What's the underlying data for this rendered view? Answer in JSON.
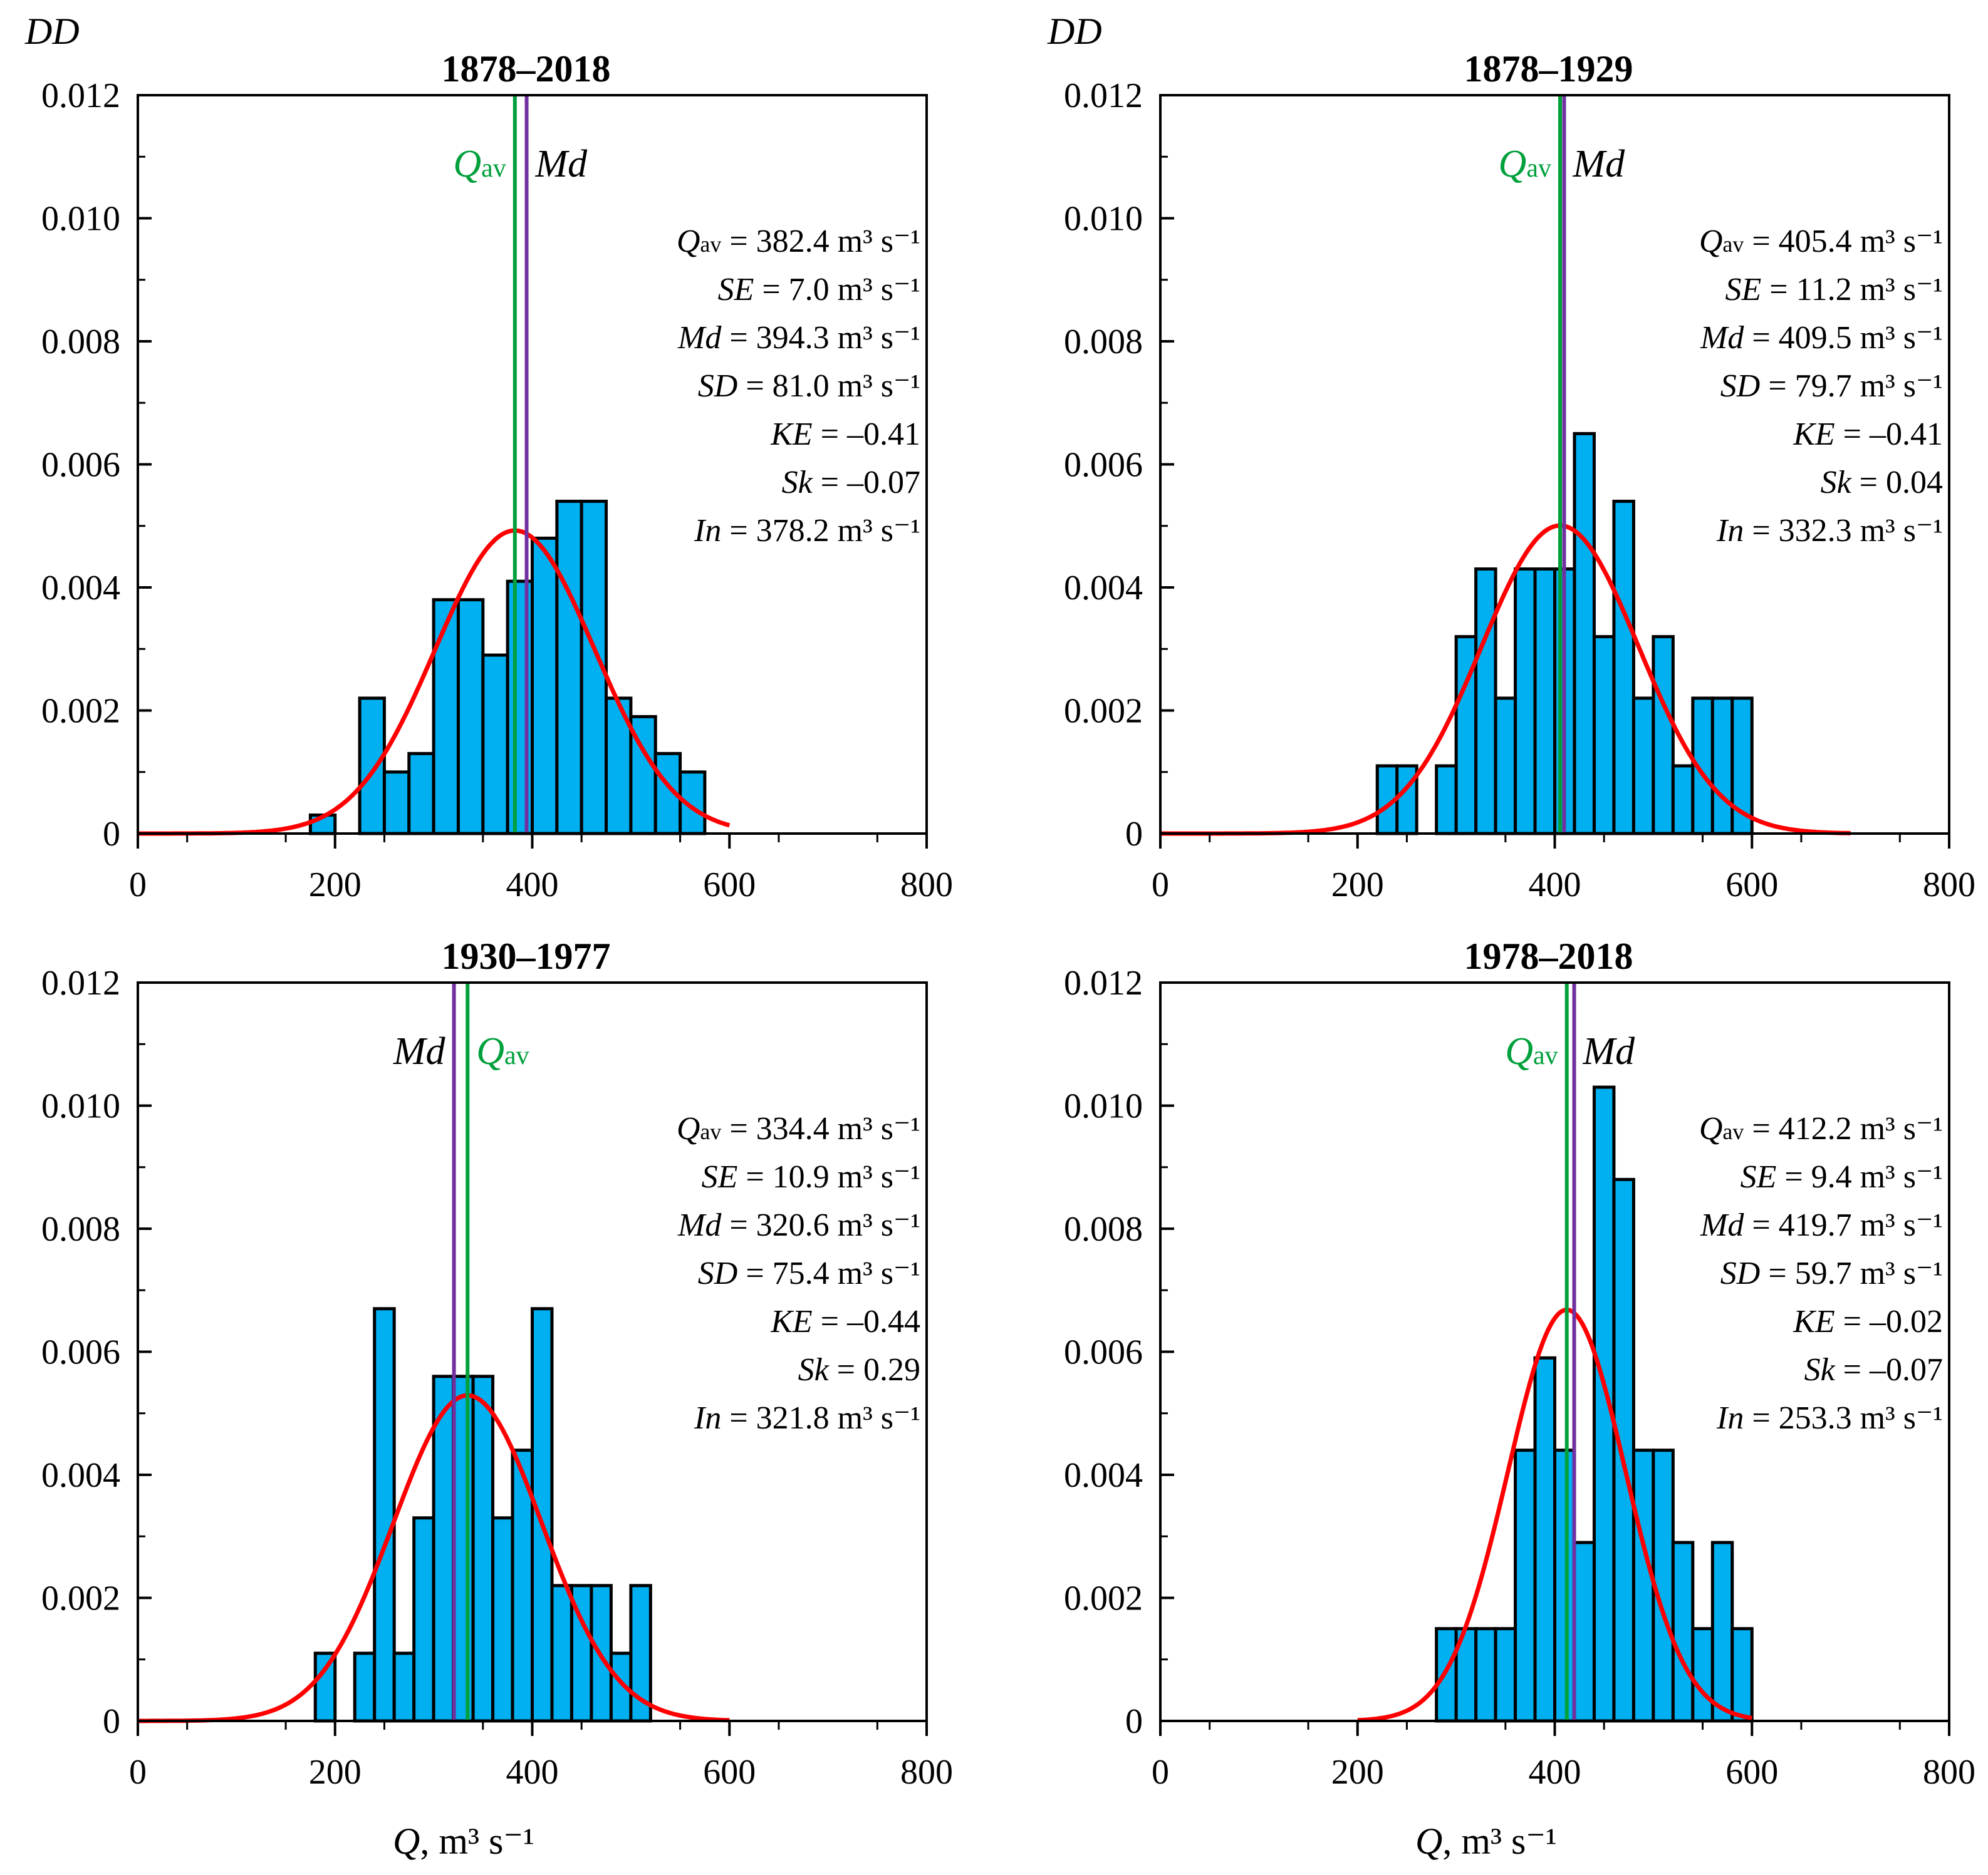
{
  "figure": {
    "y_axis_label": "DD",
    "x_axis_label": "Q, m³ s⁻¹",
    "x_axis_label_var": "Q",
    "x_axis_label_unit": ", m³ s⁻¹"
  },
  "colors": {
    "bars": "#00B0F0",
    "bar_outline": "#000000",
    "normal_curve": "#FF0000",
    "qav_line": "#00A03C",
    "md_line": "#7030A0"
  },
  "chart_data": [
    {
      "type": "bar",
      "title": "1878–2018",
      "xlabel": "Q, m³ s⁻¹",
      "ylabel": "DD",
      "xlim": [
        0,
        800
      ],
      "ylim": [
        0,
        0.012
      ],
      "x_ticks": [
        "0",
        "200",
        "400",
        "600",
        "800"
      ],
      "y_ticks": [
        "0",
        "0.002",
        "0.004",
        "0.006",
        "0.008",
        "0.010",
        "0.012"
      ],
      "bin_width": 25,
      "bins": [
        [
          175,
          0.0003
        ],
        [
          225,
          0.0022
        ],
        [
          250,
          0.001
        ],
        [
          275,
          0.0013
        ],
        [
          300,
          0.0038
        ],
        [
          325,
          0.0038
        ],
        [
          350,
          0.0029
        ],
        [
          375,
          0.0041
        ],
        [
          400,
          0.0048
        ],
        [
          425,
          0.0054
        ],
        [
          450,
          0.0054
        ],
        [
          475,
          0.0022
        ],
        [
          500,
          0.0019
        ],
        [
          525,
          0.0013
        ],
        [
          550,
          0.001
        ]
      ],
      "normal_curve": {
        "mean": 382.4,
        "sd": 81.0,
        "x_range": [
          0,
          600
        ]
      },
      "qav": 382.4,
      "md": 394.3,
      "marker_order": "qav-left",
      "marker_labels": {
        "qav": "Qav",
        "md": "Md"
      },
      "stats": [
        {
          "label": "Qav",
          "value": "= 382.4 m³ s⁻¹"
        },
        {
          "label": "SE",
          "value": "= 7.0 m³ s⁻¹"
        },
        {
          "label": "Md",
          "value": "= 394.3 m³ s⁻¹"
        },
        {
          "label": "SD",
          "value": "= 81.0 m³ s⁻¹"
        },
        {
          "label": "KE",
          "value": "= –0.41"
        },
        {
          "label": "Sk",
          "value": "= –0.07"
        },
        {
          "label": "In",
          "value": "= 378.2 m³ s⁻¹"
        }
      ]
    },
    {
      "type": "bar",
      "title": "1878–1929",
      "xlabel": "Q, m³ s⁻¹",
      "ylabel": "DD",
      "xlim": [
        0,
        800
      ],
      "ylim": [
        0,
        0.012
      ],
      "x_ticks": [
        "0",
        "200",
        "400",
        "600",
        "800"
      ],
      "y_ticks": [
        "0",
        "0.002",
        "0.004",
        "0.006",
        "0.008",
        "0.010",
        "0.012"
      ],
      "bin_width": 20,
      "bins": [
        [
          220,
          0.0011
        ],
        [
          240,
          0.0011
        ],
        [
          280,
          0.0011
        ],
        [
          300,
          0.0032
        ],
        [
          320,
          0.0043
        ],
        [
          340,
          0.0022
        ],
        [
          360,
          0.0043
        ],
        [
          380,
          0.0043
        ],
        [
          400,
          0.0043
        ],
        [
          420,
          0.0065
        ],
        [
          440,
          0.0032
        ],
        [
          460,
          0.0054
        ],
        [
          480,
          0.0022
        ],
        [
          500,
          0.0032
        ],
        [
          520,
          0.0011
        ],
        [
          540,
          0.0022
        ],
        [
          560,
          0.0022
        ],
        [
          580,
          0.0022
        ]
      ],
      "normal_curve": {
        "mean": 405.4,
        "sd": 79.7,
        "x_range": [
          0,
          700
        ]
      },
      "qav": 405.4,
      "md": 409.5,
      "marker_order": "qav-left",
      "marker_labels": {
        "qav": "Qav",
        "md": "Md"
      },
      "stats": [
        {
          "label": "Qav",
          "value": "= 405.4 m³ s⁻¹"
        },
        {
          "label": "SE",
          "value": "= 11.2 m³ s⁻¹"
        },
        {
          "label": "Md",
          "value": "= 409.5 m³ s⁻¹"
        },
        {
          "label": "SD",
          "value": "= 79.7 m³ s⁻¹"
        },
        {
          "label": "KE",
          "value": "= –0.41"
        },
        {
          "label": "Sk",
          "value": "= 0.04"
        },
        {
          "label": "In",
          "value": "= 332.3 m³ s⁻¹"
        }
      ]
    },
    {
      "type": "bar",
      "title": "1930–1977",
      "xlabel": "Q, m³ s⁻¹",
      "ylabel": "DD",
      "xlim": [
        0,
        800
      ],
      "ylim": [
        0,
        0.012
      ],
      "x_ticks": [
        "0",
        "200",
        "400",
        "600",
        "800"
      ],
      "y_ticks": [
        "0",
        "0.002",
        "0.004",
        "0.006",
        "0.008",
        "0.010",
        "0.012"
      ],
      "bin_width": 20,
      "bins": [
        [
          180,
          0.0011
        ],
        [
          220,
          0.0011
        ],
        [
          240,
          0.0067
        ],
        [
          260,
          0.0011
        ],
        [
          280,
          0.0033
        ],
        [
          300,
          0.0056
        ],
        [
          320,
          0.0056
        ],
        [
          340,
          0.0056
        ],
        [
          360,
          0.0033
        ],
        [
          380,
          0.0044
        ],
        [
          400,
          0.0067
        ],
        [
          420,
          0.0022
        ],
        [
          440,
          0.0022
        ],
        [
          460,
          0.0022
        ],
        [
          480,
          0.0011
        ],
        [
          500,
          0.0022
        ]
      ],
      "normal_curve": {
        "mean": 334.4,
        "sd": 75.4,
        "x_range": [
          0,
          600
        ]
      },
      "qav": 334.4,
      "md": 320.6,
      "marker_order": "md-left",
      "marker_labels": {
        "qav": "Qav",
        "md": "Md"
      },
      "stats": [
        {
          "label": "Qav",
          "value": "= 334.4 m³ s⁻¹"
        },
        {
          "label": "SE",
          "value": "= 10.9 m³ s⁻¹"
        },
        {
          "label": "Md",
          "value": "= 320.6 m³ s⁻¹"
        },
        {
          "label": "SD",
          "value": "= 75.4 m³ s⁻¹"
        },
        {
          "label": "KE",
          "value": "= –0.44"
        },
        {
          "label": "Sk",
          "value": "= 0.29"
        },
        {
          "label": "In",
          "value": "= 321.8 m³ s⁻¹"
        }
      ]
    },
    {
      "type": "bar",
      "title": "1978–2018",
      "xlabel": "Q, m³ s⁻¹",
      "ylabel": "DD",
      "xlim": [
        0,
        800
      ],
      "ylim": [
        0,
        0.012
      ],
      "x_ticks": [
        "0",
        "200",
        "400",
        "600",
        "800"
      ],
      "y_ticks": [
        "0",
        "0.002",
        "0.004",
        "0.006",
        "0.008",
        "0.010",
        "0.012"
      ],
      "bin_width": 20,
      "bins": [
        [
          280,
          0.0015
        ],
        [
          300,
          0.0015
        ],
        [
          320,
          0.0015
        ],
        [
          340,
          0.0015
        ],
        [
          360,
          0.0044
        ],
        [
          380,
          0.0059
        ],
        [
          400,
          0.0044
        ],
        [
          420,
          0.0029
        ],
        [
          440,
          0.0103
        ],
        [
          460,
          0.0088
        ],
        [
          480,
          0.0044
        ],
        [
          500,
          0.0044
        ],
        [
          520,
          0.0029
        ],
        [
          540,
          0.0015
        ],
        [
          560,
          0.0029
        ],
        [
          580,
          0.0015
        ]
      ],
      "normal_curve": {
        "mean": 412.2,
        "sd": 59.7,
        "x_range": [
          200,
          600
        ]
      },
      "qav": 412.2,
      "md": 419.7,
      "marker_order": "qav-left",
      "marker_labels": {
        "qav": "Qav",
        "md": "Md"
      },
      "stats": [
        {
          "label": "Qav",
          "value": "= 412.2 m³ s⁻¹"
        },
        {
          "label": "SE",
          "value": "= 9.4 m³ s⁻¹"
        },
        {
          "label": "Md",
          "value": "= 419.7 m³ s⁻¹"
        },
        {
          "label": "SD",
          "value": "= 59.7 m³ s⁻¹"
        },
        {
          "label": "KE",
          "value": "= –0.02"
        },
        {
          "label": "Sk",
          "value": "= –0.07"
        },
        {
          "label": "In",
          "value": "= 253.3 m³ s⁻¹"
        }
      ]
    }
  ]
}
